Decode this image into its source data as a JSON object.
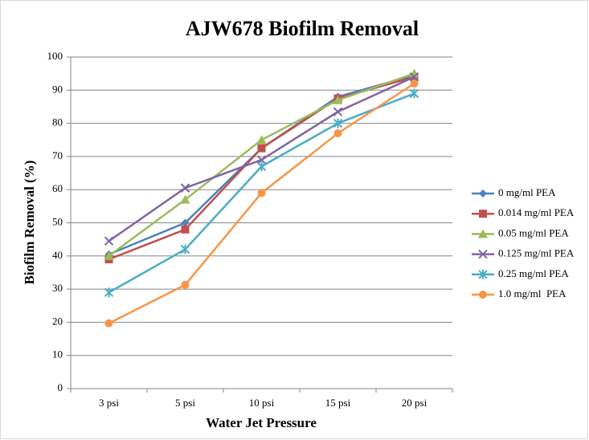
{
  "chart_data": {
    "type": "line",
    "title": "AJW678 Biofilm Removal",
    "xlabel": "Water Jet Pressure",
    "ylabel": "Biofilm Removal (%)",
    "categories": [
      "3 psi",
      "5 psi",
      "10 psi",
      "15 psi",
      "20 psi"
    ],
    "series": [
      {
        "name": "0 mg/ml PEA",
        "color": "#4f81bd",
        "marker": "diamond",
        "values": [
          40.5,
          50,
          72.5,
          88,
          94.5
        ]
      },
      {
        "name": "0.014 mg/ml PEA",
        "color": "#c0504d",
        "marker": "square",
        "values": [
          39,
          48,
          72.5,
          87.5,
          94
        ]
      },
      {
        "name": "0.05 mg/ml PEA",
        "color": "#9bbb59",
        "marker": "triangle",
        "values": [
          40,
          57,
          75,
          87,
          95
        ]
      },
      {
        "name": "0.125 mg/ml PEA",
        "color": "#8064a2",
        "marker": "x",
        "values": [
          44.5,
          60.5,
          69,
          83.5,
          94
        ]
      },
      {
        "name": "0.25 mg/ml PEA",
        "color": "#4bacc6",
        "marker": "star",
        "values": [
          29,
          42,
          67,
          80,
          89
        ]
      },
      {
        "name": "1.0 mg/ml  PEA",
        "color": "#f79646",
        "marker": "circle",
        "values": [
          19.7,
          31.3,
          59,
          77,
          92
        ]
      }
    ],
    "ylim": [
      0,
      100
    ],
    "yticks": [
      0,
      10,
      20,
      30,
      40,
      50,
      60,
      70,
      80,
      90,
      100
    ],
    "grid": true,
    "legend": "right"
  }
}
